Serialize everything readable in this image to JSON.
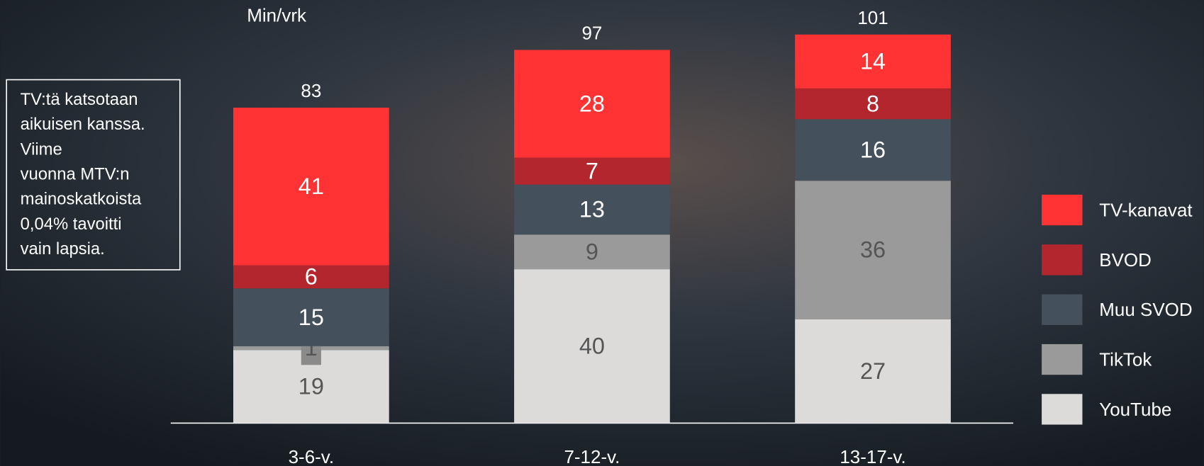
{
  "chart_data": {
    "type": "stacked_bar",
    "unit_label": "Min/vrk",
    "annotation_lines": [
      "TV:tä katsotaan",
      "aikuisen kanssa.",
      "Viime",
      "vuonna MTV:n",
      "mainoskatkoista",
      "0,04% tavoitti",
      "vain lapsia."
    ],
    "categories": [
      "3-6-v.",
      "7-12-v.",
      "13-17-v."
    ],
    "totals": [
      83,
      97,
      101
    ],
    "series": [
      {
        "name": "YouTube",
        "color": "#dcdbda",
        "values": [
          19,
          40,
          27
        ]
      },
      {
        "name": "TikTok",
        "color": "#9a9a9a",
        "values": [
          1,
          9,
          36
        ]
      },
      {
        "name": "Muu SVOD",
        "color": "#44505c",
        "values": [
          15,
          13,
          16
        ]
      },
      {
        "name": "BVOD",
        "color": "#b3262e",
        "values": [
          6,
          7,
          8
        ]
      },
      {
        "name": "TV-kanavat",
        "color": "#ff3333",
        "values": [
          41,
          28,
          14
        ]
      }
    ],
    "ylim": [
      0,
      105
    ],
    "legend": "right"
  }
}
